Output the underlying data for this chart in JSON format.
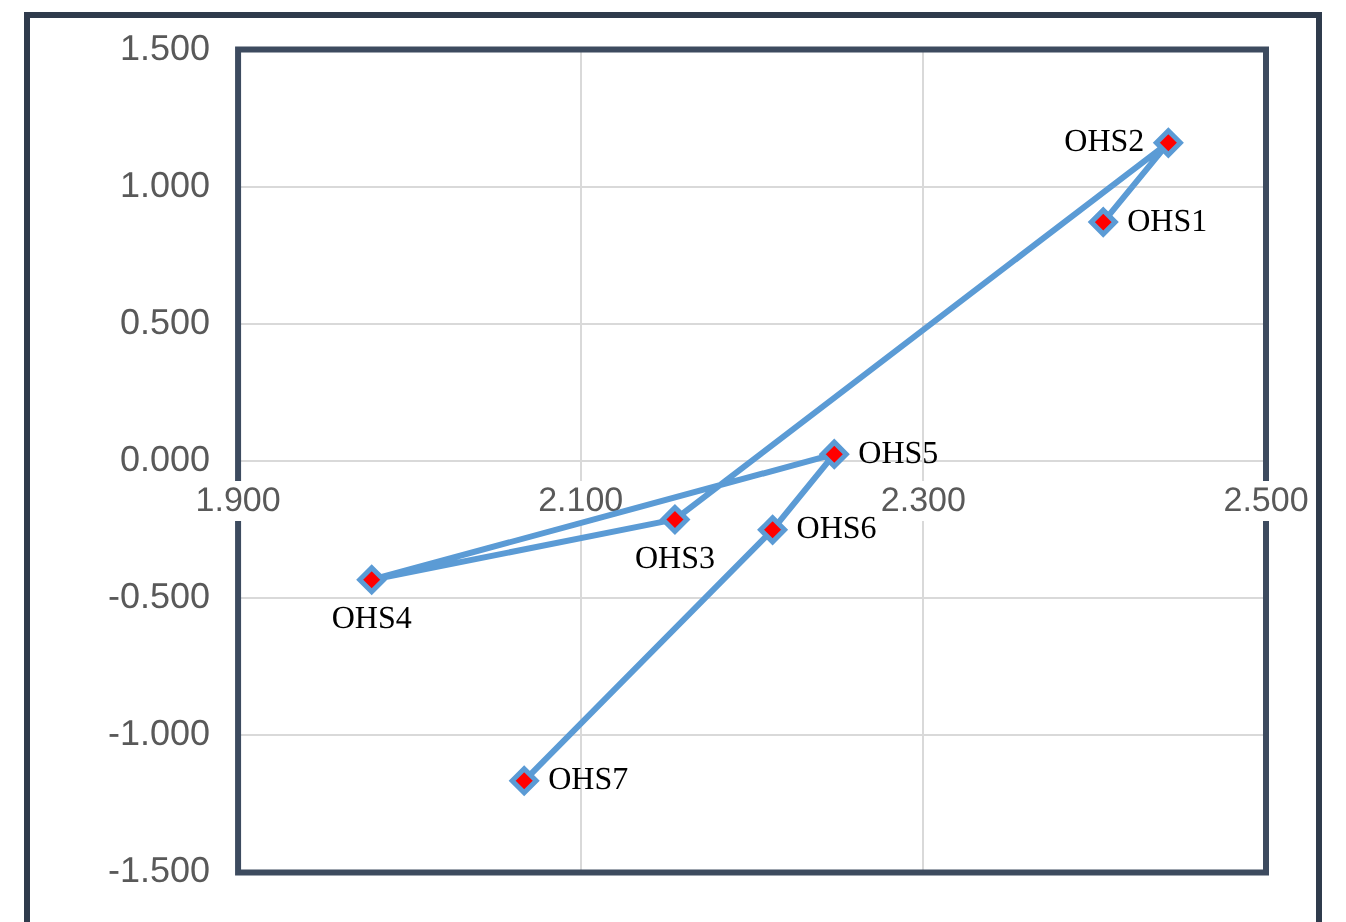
{
  "chart_data": {
    "type": "line",
    "x": [
      2.405,
      2.443,
      2.155,
      1.978,
      2.248,
      2.212,
      2.067
    ],
    "series": [
      {
        "color": "#5b9bd5",
        "colors": [
          "#ff0000",
          "#ff0000",
          "#ff0000",
          "#ff0000",
          "#ff0000",
          "#ff0000",
          "#ff0000"
        ],
        "values": [
          0.871,
          1.16,
          -0.213,
          -0.433,
          0.025,
          -0.251,
          -1.166
        ]
      }
    ],
    "xlim": [
      1.9,
      2.5
    ],
    "xticks": [
      {
        "value": 1.9,
        "label": "1.900"
      },
      {
        "value": 2.1,
        "label": "2.100"
      },
      {
        "value": 2.3,
        "label": "2.300"
      },
      {
        "value": 2.5,
        "label": "2.500"
      }
    ],
    "ylim": [
      -1.5,
      1.5
    ],
    "yticks": [
      {
        "value": -1.5,
        "label": "-1.500"
      },
      {
        "value": -1.0,
        "label": "-1.000"
      },
      {
        "value": -0.5,
        "label": "-0.500"
      },
      {
        "value": 0,
        "label": "0.000"
      },
      {
        "value": 0.5,
        "label": "0.500"
      },
      {
        "value": 1.0,
        "label": "1.000"
      },
      {
        "value": 1.5,
        "label": "1.500"
      }
    ],
    "grid": true,
    "legend": false,
    "marker": "diamond",
    "line_style": "solid",
    "annotations": [
      {
        "text": "OHS1",
        "x": 2.405,
        "y": 0.871
      },
      {
        "text": "OHS2",
        "x": 2.443,
        "y": 1.16
      },
      {
        "text": "OHS3",
        "x": 2.155,
        "y": -0.213
      },
      {
        "text": "OHS4",
        "x": 1.978,
        "y": -0.433
      },
      {
        "text": "OHS5",
        "x": 2.248,
        "y": 0.025
      },
      {
        "text": "OHS6",
        "x": 2.212,
        "y": -0.251
      },
      {
        "text": "OHS7",
        "x": 2.067,
        "y": -1.166
      }
    ]
  }
}
